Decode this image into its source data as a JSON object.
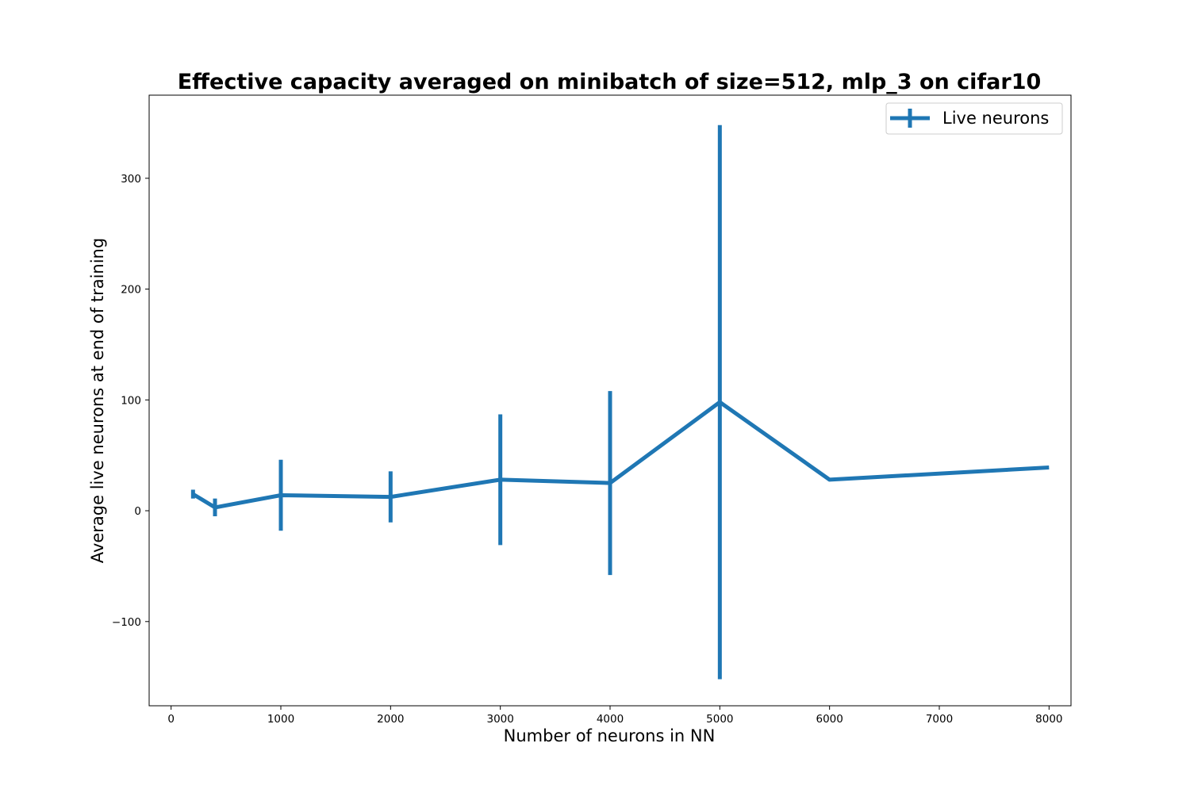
{
  "chart_data": {
    "type": "line",
    "title": "Effective capacity averaged on minibatch of size=512, mlp_3 on cifar10",
    "xlabel": "Number of neurons in NN",
    "ylabel": "Average live neurons at end of training",
    "xlim": [
      -200,
      8200
    ],
    "ylim": [
      -176,
      375
    ],
    "x_ticks": [
      0,
      1000,
      2000,
      3000,
      4000,
      5000,
      6000,
      7000,
      8000
    ],
    "x_tick_labels": [
      "0",
      "1000",
      "2000",
      "3000",
      "4000",
      "5000",
      "6000",
      "7000",
      "8000"
    ],
    "y_ticks": [
      -100,
      0,
      100,
      200,
      300
    ],
    "y_tick_labels": [
      "−100",
      "0",
      "100",
      "200",
      "300"
    ],
    "grid": false,
    "legend_position": "top-right",
    "series": [
      {
        "name": "Live neurons",
        "color": "#1f77b4",
        "points": [
          {
            "x": 200,
            "y": 15,
            "err": 4
          },
          {
            "x": 400,
            "y": 3,
            "err": 8
          },
          {
            "x": 1000,
            "y": 14,
            "err": 32
          },
          {
            "x": 2000,
            "y": 12.5,
            "err": 23
          },
          {
            "x": 3000,
            "y": 28,
            "err": 59
          },
          {
            "x": 4000,
            "y": 25,
            "err": 83
          },
          {
            "x": 5000,
            "y": 98,
            "err": 250
          },
          {
            "x": 6000,
            "y": 28,
            "err": 0
          },
          {
            "x": 8000,
            "y": 39,
            "err": 0
          }
        ]
      }
    ]
  }
}
